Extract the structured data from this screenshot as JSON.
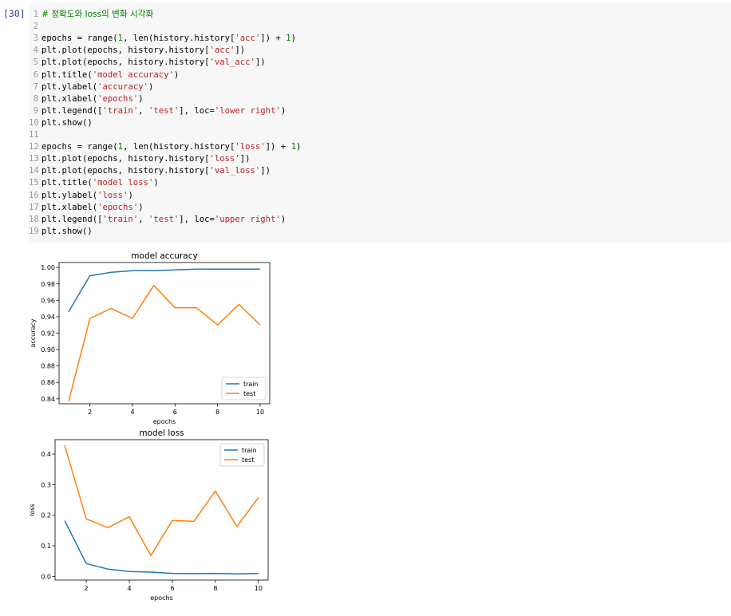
{
  "cell": {
    "prompt": "[30]",
    "lines": [
      {
        "n": "1",
        "text": "# 정확도와 loss의 변화 시각화",
        "kind": "comment"
      },
      {
        "n": "2",
        "text": "",
        "kind": "code"
      },
      {
        "n": "3",
        "text": "epochs = range(1, len(history.history['acc']) + 1)",
        "kind": "code"
      },
      {
        "n": "4",
        "text": "plt.plot(epochs, history.history['acc'])",
        "kind": "code"
      },
      {
        "n": "5",
        "text": "plt.plot(epochs, history.history['val_acc'])",
        "kind": "code"
      },
      {
        "n": "6",
        "text": "plt.title('model accuracy')",
        "kind": "code"
      },
      {
        "n": "7",
        "text": "plt.ylabel('accuracy')",
        "kind": "code"
      },
      {
        "n": "8",
        "text": "plt.xlabel('epochs')",
        "kind": "code"
      },
      {
        "n": "9",
        "text": "plt.legend(['train', 'test'], loc='lower right')",
        "kind": "code"
      },
      {
        "n": "10",
        "text": "plt.show()",
        "kind": "code"
      },
      {
        "n": "11",
        "text": "",
        "kind": "code"
      },
      {
        "n": "12",
        "text": "epochs = range(1, len(history.history['loss']) + 1)",
        "kind": "code"
      },
      {
        "n": "13",
        "text": "plt.plot(epochs, history.history['loss'])",
        "kind": "code"
      },
      {
        "n": "14",
        "text": "plt.plot(epochs, history.history['val_loss'])",
        "kind": "code"
      },
      {
        "n": "15",
        "text": "plt.title('model loss')",
        "kind": "code"
      },
      {
        "n": "16",
        "text": "plt.ylabel('loss')",
        "kind": "code"
      },
      {
        "n": "17",
        "text": "plt.xlabel('epochs')",
        "kind": "code"
      },
      {
        "n": "18",
        "text": "plt.legend(['train', 'test'], loc='upper right')",
        "kind": "code"
      },
      {
        "n": "19",
        "text": "plt.show()",
        "kind": "code"
      }
    ]
  },
  "colors": {
    "train": "#1f77b4",
    "test": "#ff7f0e",
    "comment": "#007f00",
    "string": "#ba2121",
    "prompt": "#303f9f"
  },
  "chart_data": [
    {
      "type": "line",
      "title": "model accuracy",
      "xlabel": "epochs",
      "ylabel": "accuracy",
      "x": [
        1,
        2,
        3,
        4,
        5,
        6,
        7,
        8,
        9,
        10
      ],
      "xticks": [
        2,
        4,
        6,
        8,
        10
      ],
      "yticks": [
        0.84,
        0.86,
        0.88,
        0.9,
        0.92,
        0.94,
        0.96,
        0.98,
        1.0
      ],
      "ylim": [
        0.834,
        1.006
      ],
      "xlim": [
        0.55,
        10.45
      ],
      "legend_loc": "lower right",
      "series": [
        {
          "name": "train",
          "values": [
            0.946,
            0.99,
            0.994,
            0.996,
            0.996,
            0.997,
            0.998,
            0.998,
            0.998,
            0.998
          ]
        },
        {
          "name": "test",
          "values": [
            0.837,
            0.938,
            0.95,
            0.938,
            0.978,
            0.951,
            0.951,
            0.93,
            0.955,
            0.93
          ]
        }
      ]
    },
    {
      "type": "line",
      "title": "model loss",
      "xlabel": "epochs",
      "ylabel": "loss",
      "x": [
        1,
        2,
        3,
        4,
        5,
        6,
        7,
        8,
        9,
        10
      ],
      "xticks": [
        2,
        4,
        6,
        8,
        10
      ],
      "yticks": [
        0.0,
        0.1,
        0.2,
        0.3,
        0.4
      ],
      "ylim": [
        -0.012,
        0.447
      ],
      "xlim": [
        0.55,
        10.45
      ],
      "legend_loc": "upper right",
      "series": [
        {
          "name": "train",
          "values": [
            0.182,
            0.042,
            0.024,
            0.016,
            0.014,
            0.01,
            0.009,
            0.01,
            0.008,
            0.01
          ]
        },
        {
          "name": "test",
          "values": [
            0.428,
            0.188,
            0.159,
            0.195,
            0.068,
            0.183,
            0.18,
            0.279,
            0.163,
            0.258
          ]
        }
      ]
    }
  ]
}
